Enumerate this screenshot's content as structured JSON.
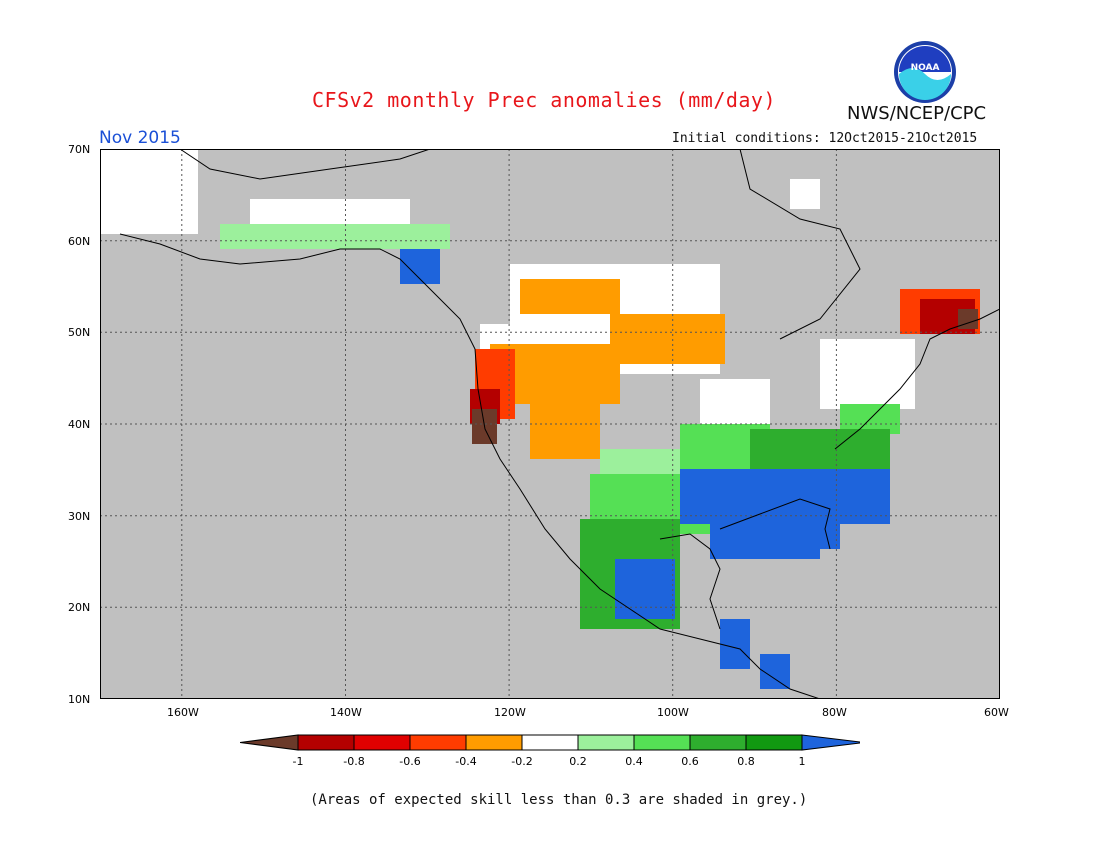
{
  "header": {
    "title": "CFSv2 monthly Prec anomalies (mm/day)",
    "agency": "NWS/NCEP/CPC",
    "logo_text": "NOAA",
    "month": "Nov 2015",
    "initial_conditions": "Initial conditions: 12Oct2015-21Oct2015"
  },
  "axes": {
    "lat_labels": [
      "70N",
      "60N",
      "50N",
      "40N",
      "30N",
      "20N",
      "10N"
    ],
    "lon_labels": [
      "160W",
      "140W",
      "120W",
      "100W",
      "80W",
      "60W"
    ],
    "lat_range": [
      10,
      70
    ],
    "lon_range": [
      -170,
      -60
    ]
  },
  "legend": {
    "labels": [
      "-1",
      "-0.8",
      "-0.6",
      "-0.4",
      "-0.2",
      "0.2",
      "0.4",
      "0.6",
      "0.8",
      "1"
    ],
    "colors": [
      "#6b3a2a",
      "#b40000",
      "#e00000",
      "#ff3c00",
      "#ff9c00",
      "#ffffff",
      "#9cf09c",
      "#55e055",
      "#2eae2e",
      "#119911",
      "#1e64dc"
    ]
  },
  "note": "(Areas of expected skill less than 0.3 are shaded in grey.)",
  "colors": {
    "background_grey": "#c0c0c0",
    "title_red": "#e8161b",
    "month_blue": "#1a4fd6"
  }
}
